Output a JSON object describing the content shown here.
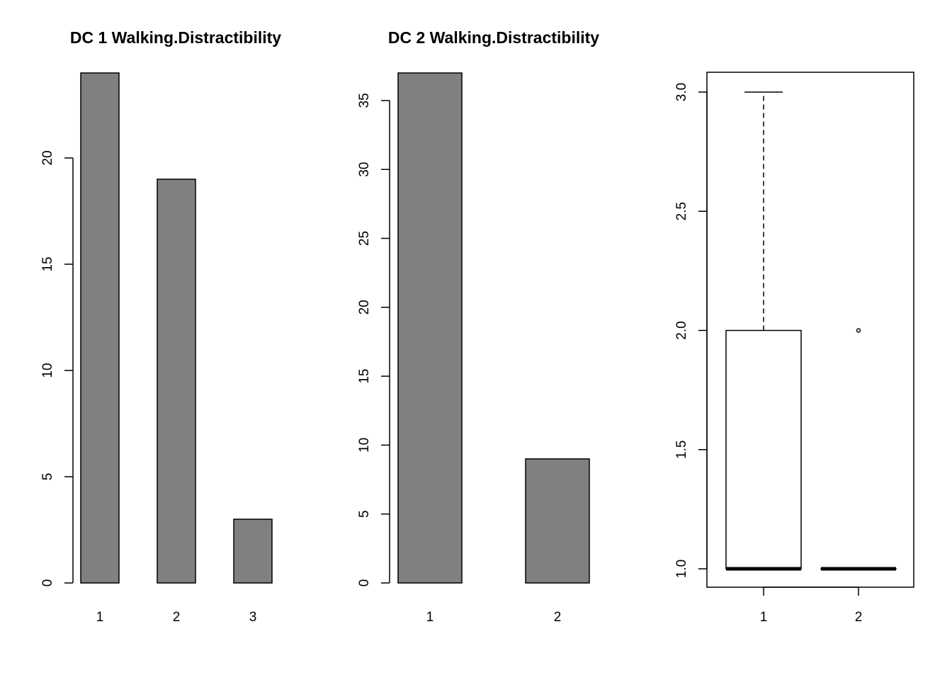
{
  "chart_data": [
    {
      "type": "bar",
      "title": "DC 1 Walking.Distractibility",
      "categories": [
        "1",
        "2",
        "3"
      ],
      "values": [
        24,
        19,
        3
      ],
      "ylim": [
        0,
        24
      ],
      "yticks": [
        0,
        5,
        10,
        15,
        20
      ],
      "bar_color": "#808080"
    },
    {
      "type": "bar",
      "title": "DC 2 Walking.Distractibility",
      "categories": [
        "1",
        "2"
      ],
      "values": [
        37,
        9
      ],
      "ylim": [
        0,
        37
      ],
      "yticks": [
        0,
        5,
        10,
        15,
        20,
        25,
        30,
        35
      ],
      "bar_color": "#808080"
    },
    {
      "type": "box",
      "title": "",
      "categories": [
        "1",
        "2"
      ],
      "boxes": [
        {
          "min": 1,
          "q1": 1,
          "median": 1,
          "q3": 2,
          "max": 3,
          "outliers": []
        },
        {
          "min": 1,
          "q1": 1,
          "median": 1,
          "q3": 1,
          "max": 1,
          "outliers": [
            2
          ]
        }
      ],
      "ylim": [
        1,
        3
      ],
      "yticks": [
        "1.0",
        "1.5",
        "2.0",
        "2.5",
        "3.0"
      ],
      "frame": true
    }
  ]
}
